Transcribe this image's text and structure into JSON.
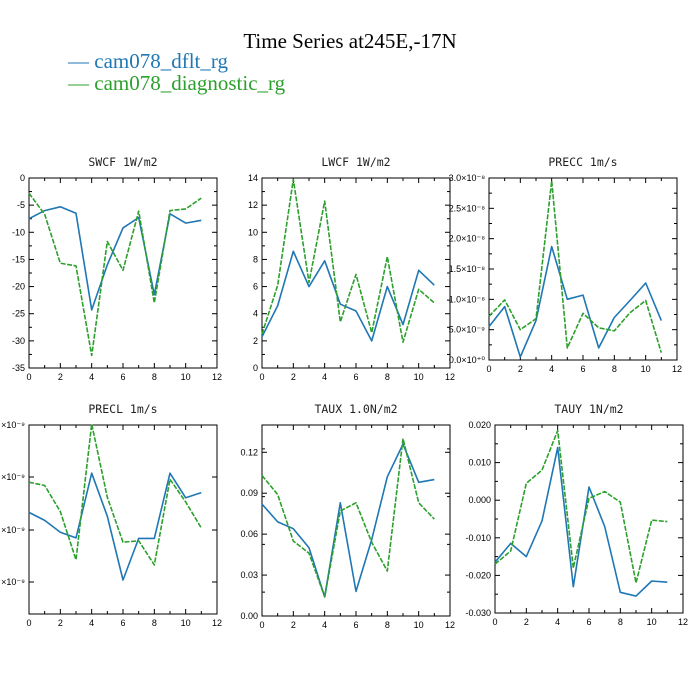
{
  "figure": {
    "title": "Time Series at245E,-17N",
    "legend": [
      {
        "label": "— cam078_dflt_rg",
        "color": "#1f77b4"
      },
      {
        "label": "— cam078_diagnostic_rg",
        "color": "#2ca02c"
      }
    ]
  },
  "chart_data": [
    {
      "type": "line",
      "title": "SWCF   1W/m2",
      "x": [
        0,
        1,
        2,
        3,
        4,
        5,
        6,
        7,
        8,
        9,
        10,
        11
      ],
      "xlim": [
        0,
        12
      ],
      "xticks": [
        "0",
        "2",
        "4",
        "6",
        "8",
        "10",
        "12"
      ],
      "ylim": [
        -35,
        0
      ],
      "yticks": [
        "0",
        "-5",
        "-10",
        "-15",
        "-20",
        "-25",
        "-30",
        "-35"
      ],
      "series": [
        {
          "name": "cam078_dflt_rg",
          "color": "#1f77b4",
          "dash": "solid",
          "values": [
            -7.5,
            -6.0,
            -5.3,
            -6.5,
            -24.3,
            -16.0,
            -9.2,
            -7.3,
            -21.5,
            -6.6,
            -8.3,
            -7.8
          ]
        },
        {
          "name": "cam078_diagnostic_rg",
          "color": "#2ca02c",
          "dash": "dashed",
          "values": [
            -2.8,
            -6.7,
            -15.7,
            -16.2,
            -32.7,
            -11.7,
            -17.0,
            -6.1,
            -23.0,
            -6.0,
            -5.7,
            -3.7
          ]
        }
      ]
    },
    {
      "type": "line",
      "title": "LWCF   1W/m2",
      "x": [
        0,
        1,
        2,
        3,
        4,
        5,
        6,
        7,
        8,
        9,
        10,
        11
      ],
      "xlim": [
        0,
        12
      ],
      "xticks": [
        "0",
        "2",
        "4",
        "6",
        "8",
        "10",
        "12"
      ],
      "ylim": [
        0,
        14
      ],
      "yticks": [
        "14",
        "12",
        "10",
        "8",
        "6",
        "4",
        "2",
        "0"
      ],
      "series": [
        {
          "name": "cam078_dflt_rg",
          "color": "#1f77b4",
          "dash": "solid",
          "values": [
            2.3,
            4.6,
            8.6,
            6.0,
            7.9,
            4.7,
            4.2,
            2.0,
            6.0,
            3.2,
            7.2,
            6.1
          ]
        },
        {
          "name": "cam078_diagnostic_rg",
          "color": "#2ca02c",
          "dash": "dashed",
          "values": [
            2.5,
            6.1,
            13.9,
            6.3,
            12.3,
            3.4,
            6.9,
            2.6,
            8.2,
            1.9,
            5.8,
            4.8
          ]
        }
      ]
    },
    {
      "type": "line",
      "title": "PRECC   1m/s",
      "x": [
        0,
        1,
        2,
        3,
        4,
        5,
        6,
        7,
        8,
        9,
        10,
        11
      ],
      "xlim": [
        0,
        12
      ],
      "xticks": [
        "0",
        "2",
        "4",
        "6",
        "8",
        "10",
        "12"
      ],
      "ylim": [
        0,
        3e-08
      ],
      "yticks": [
        "3.0×10⁻⁸",
        "2.5×10⁻⁸",
        "2.0×10⁻⁸",
        "1.5×10⁻⁸",
        "1.0×10⁻⁸",
        "5.0×10⁻⁹",
        "0.0×10⁺⁰"
      ],
      "series": [
        {
          "name": "cam078_dflt_rg",
          "color": "#1f77b4",
          "dash": "solid",
          "values": [
            5.5e-09,
            8.8e-09,
            5e-10,
            6.5e-09,
            1.87e-08,
            1e-08,
            1.07e-08,
            2e-09,
            7e-09,
            9.8e-09,
            1.27e-08,
            6.5e-09
          ]
        },
        {
          "name": "cam078_diagnostic_rg",
          "color": "#2ca02c",
          "dash": "dashed",
          "values": [
            7.2e-09,
            9.9e-09,
            5e-09,
            6.8e-09,
            2.95e-08,
            2e-09,
            7.7e-09,
            5.3e-09,
            4.8e-09,
            7.8e-09,
            9.8e-09,
            1.2e-09
          ]
        }
      ]
    },
    {
      "type": "line",
      "title": "PRECL   1m/s",
      "x": [
        0,
        1,
        2,
        3,
        4,
        5,
        6,
        7,
        8,
        9,
        10,
        11
      ],
      "xlim": [
        0,
        12
      ],
      "xticks": [
        "0",
        "2",
        "4",
        "6",
        "8",
        "10",
        "12"
      ],
      "ylim": [
        0,
        4.0
      ],
      "yticks": [
        "×10⁻⁹",
        "×10⁻⁹",
        "×10⁻⁹",
        "×10⁻⁹"
      ],
      "series": [
        {
          "name": "cam078_dflt_rg",
          "color": "#1f77b4",
          "dash": "solid",
          "values": [
            2.15,
            1.98,
            1.73,
            1.61,
            2.98,
            2.07,
            0.72,
            1.6,
            1.6,
            2.98,
            2.46,
            2.57
          ]
        },
        {
          "name": "cam078_diagnostic_rg",
          "color": "#2ca02c",
          "dash": "dashed",
          "values": [
            2.79,
            2.72,
            2.17,
            1.15,
            4.02,
            2.47,
            1.52,
            1.55,
            1.04,
            2.85,
            2.37,
            1.82
          ]
        }
      ]
    },
    {
      "type": "line",
      "title": "TAUX   1.0N/m2",
      "x": [
        0,
        1,
        2,
        3,
        4,
        5,
        6,
        7,
        8,
        9,
        10,
        11
      ],
      "xlim": [
        0,
        12
      ],
      "xticks": [
        "0",
        "2",
        "4",
        "6",
        "8",
        "10",
        "12"
      ],
      "ylim": [
        0,
        0.14
      ],
      "yticks": [
        "0.12",
        "0.09",
        "0.06",
        "0.03",
        "0.00"
      ],
      "series": [
        {
          "name": "cam078_dflt_rg",
          "color": "#1f77b4",
          "dash": "solid",
          "values": [
            0.082,
            0.069,
            0.064,
            0.05,
            0.014,
            0.083,
            0.018,
            0.056,
            0.102,
            0.126,
            0.098,
            0.1
          ]
        },
        {
          "name": "cam078_diagnostic_rg",
          "color": "#2ca02c",
          "dash": "dashed",
          "values": [
            0.103,
            0.089,
            0.055,
            0.046,
            0.014,
            0.077,
            0.083,
            0.054,
            0.033,
            0.13,
            0.083,
            0.071
          ]
        }
      ]
    },
    {
      "type": "line",
      "title": "TAUY   1N/m2",
      "x": [
        0,
        1,
        2,
        3,
        4,
        5,
        6,
        7,
        8,
        9,
        10,
        11
      ],
      "xlim": [
        0,
        12
      ],
      "xticks": [
        "0",
        "2",
        "4",
        "6",
        "8",
        "10",
        "12"
      ],
      "ylim": [
        -0.03,
        0.02
      ],
      "yticks": [
        "0.020",
        "0.010",
        "0.000",
        "-0.010",
        "-0.020",
        "-0.030"
      ],
      "series": [
        {
          "name": "cam078_dflt_rg",
          "color": "#1f77b4",
          "dash": "solid",
          "values": [
            -0.0165,
            -0.0115,
            -0.015,
            -0.0055,
            0.014,
            -0.023,
            0.0035,
            -0.007,
            -0.0245,
            -0.0255,
            -0.0215,
            -0.0218
          ]
        },
        {
          "name": "cam078_diagnostic_rg",
          "color": "#2ca02c",
          "dash": "dashed",
          "values": [
            -0.017,
            -0.0135,
            0.0045,
            0.008,
            0.0185,
            -0.018,
            0.0005,
            0.0023,
            -0.0005,
            -0.022,
            -0.0053,
            -0.0057
          ]
        }
      ]
    }
  ]
}
